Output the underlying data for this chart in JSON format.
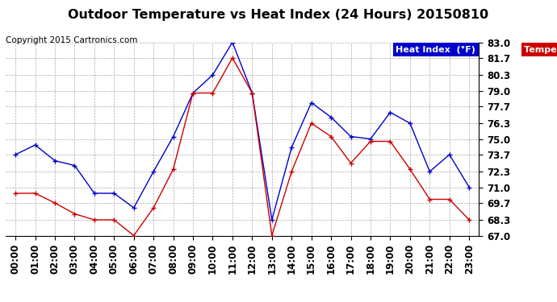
{
  "title": "Outdoor Temperature vs Heat Index (24 Hours) 20150810",
  "copyright": "Copyright 2015 Cartronics.com",
  "y_tick_labels": [
    "67.0",
    "68.3",
    "69.7",
    "71.0",
    "72.3",
    "73.7",
    "75.0",
    "76.3",
    "77.7",
    "79.0",
    "80.3",
    "81.7",
    "83.0"
  ],
  "y_tick_values": [
    67.0,
    68.3,
    69.7,
    71.0,
    72.3,
    73.7,
    75.0,
    76.3,
    77.7,
    79.0,
    80.3,
    81.7,
    83.0
  ],
  "ylim": [
    67.0,
    83.0
  ],
  "x_labels": [
    "00:00",
    "01:00",
    "02:00",
    "03:00",
    "04:00",
    "05:00",
    "06:00",
    "07:00",
    "08:00",
    "09:00",
    "10:00",
    "11:00",
    "12:00",
    "13:00",
    "14:00",
    "15:00",
    "16:00",
    "17:00",
    "18:00",
    "19:00",
    "20:00",
    "21:00",
    "22:00",
    "23:00"
  ],
  "heat_index": [
    73.7,
    74.5,
    73.2,
    72.8,
    70.5,
    70.5,
    69.3,
    72.3,
    75.2,
    78.8,
    80.3,
    83.0,
    78.8,
    68.3,
    74.3,
    78.0,
    76.8,
    75.2,
    75.0,
    77.2,
    76.3,
    72.3,
    73.7,
    71.0
  ],
  "temperature": [
    70.5,
    70.5,
    69.7,
    68.8,
    68.3,
    68.3,
    67.0,
    69.3,
    72.5,
    78.8,
    78.8,
    81.7,
    78.8,
    67.0,
    72.3,
    76.3,
    75.2,
    73.0,
    74.8,
    74.8,
    72.5,
    70.0,
    70.0,
    68.3
  ],
  "heat_index_color": "#0000cc",
  "temperature_color": "#cc0000",
  "background_color": "#ffffff",
  "grid_color": "#aaaaaa",
  "title_fontsize": 11.5,
  "tick_fontsize": 8.5,
  "copyright_fontsize": 7.5
}
